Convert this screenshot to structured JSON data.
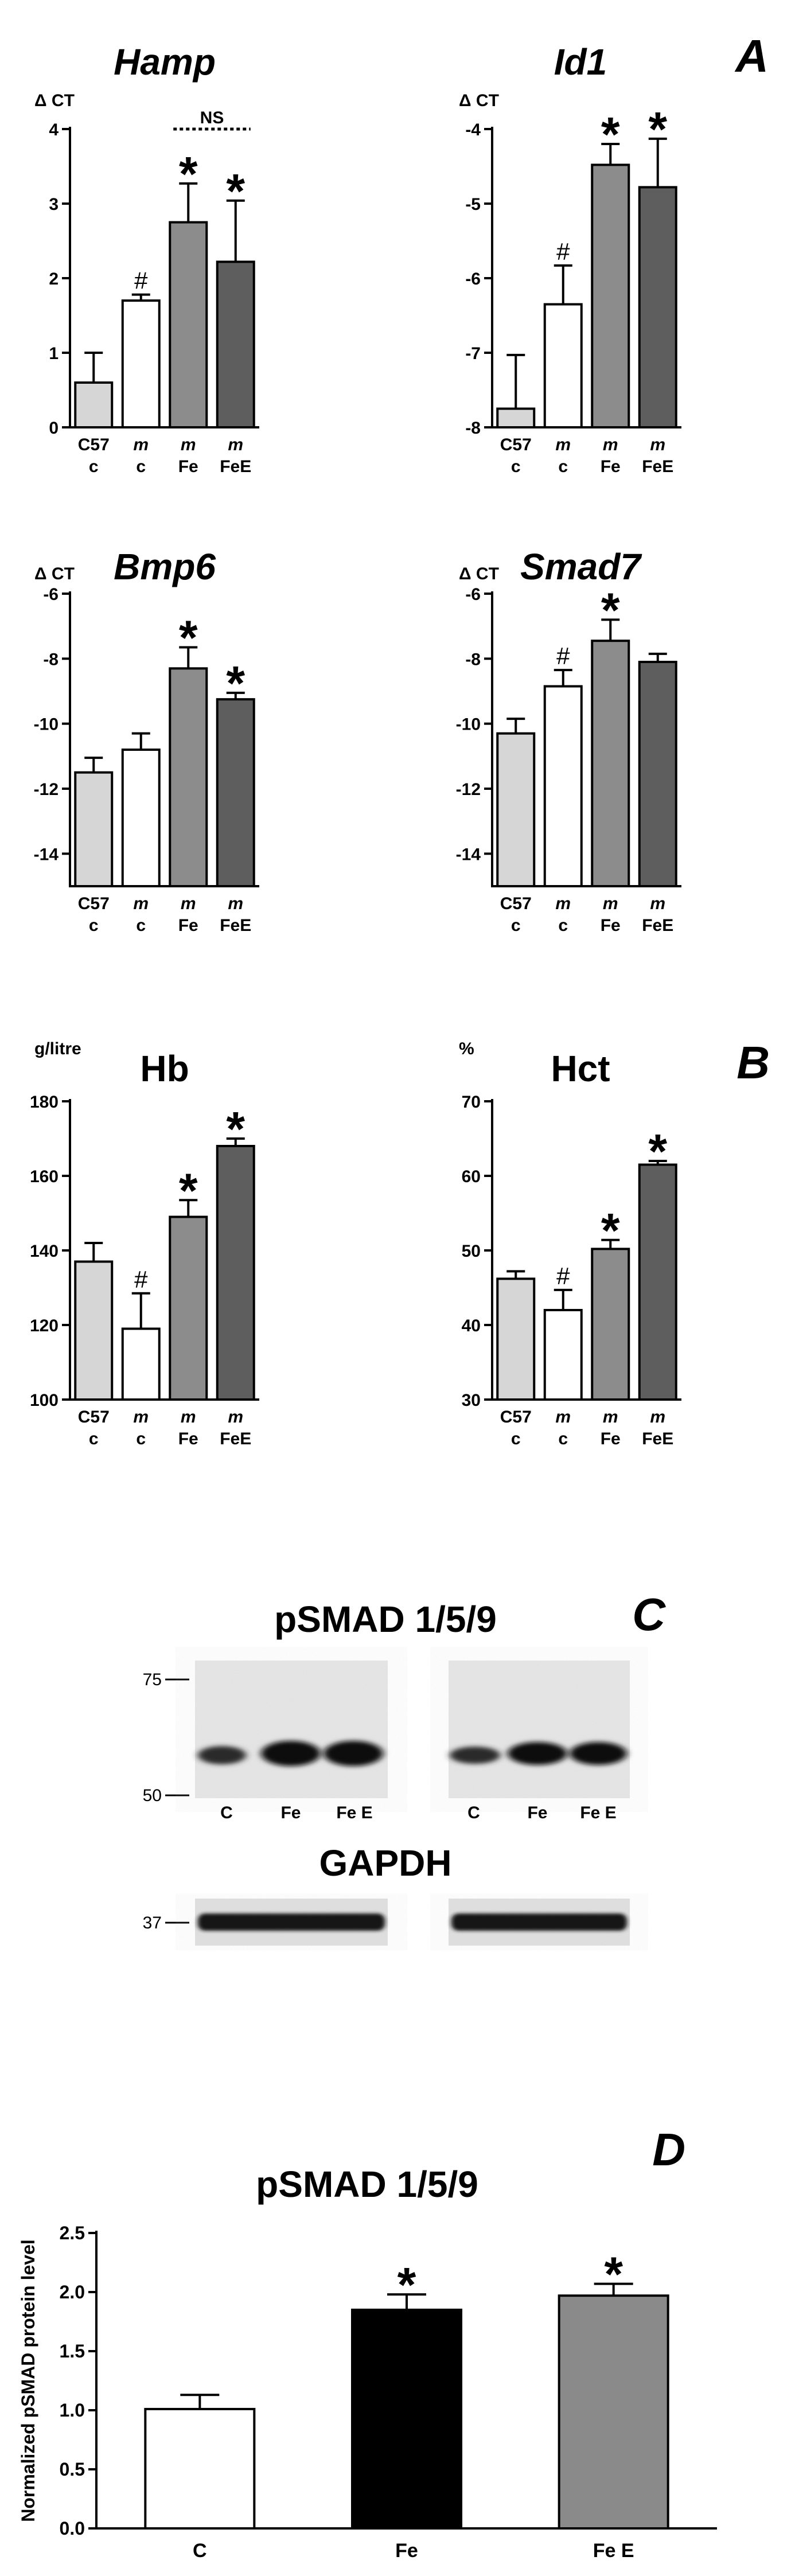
{
  "panel_letters": {
    "A": "A",
    "B": "B",
    "C": "C",
    "D": "D"
  },
  "colors": {
    "control": "#d6d6d6",
    "mutant_c": "#ffffff",
    "mutant_fe": "#8c8c8c",
    "mutant_fee": "#5e5e5e",
    "black": "#000000",
    "grey": "#8a8a8a"
  },
  "chart_data": [
    {
      "type": "bar",
      "title": "Hamp",
      "ylabel": "Δ CT",
      "ylim": [
        0,
        4
      ],
      "yticks": [
        0,
        1,
        2,
        3,
        4
      ],
      "categories": [
        [
          "C57",
          "c"
        ],
        [
          "m",
          "c"
        ],
        [
          "m",
          "Fe"
        ],
        [
          "m",
          "FeE"
        ]
      ],
      "values": [
        0.6,
        1.7,
        2.75,
        2.22
      ],
      "errors": [
        0.4,
        0.08,
        0.52,
        0.82
      ],
      "annotations": [
        "",
        "#",
        "*",
        "*"
      ],
      "bracket_label": "NS"
    },
    {
      "type": "bar",
      "title": "Id1",
      "ylabel": "Δ CT",
      "ylim": [
        -8,
        -4
      ],
      "yticks": [
        -8,
        -7,
        -6,
        -5,
        -4
      ],
      "categories": [
        [
          "C57",
          "c"
        ],
        [
          "m",
          "c"
        ],
        [
          "m",
          "Fe"
        ],
        [
          "m",
          "FeE"
        ]
      ],
      "values": [
        -7.75,
        -6.35,
        -4.48,
        -4.78
      ],
      "errors": [
        0.72,
        0.52,
        0.28,
        0.65
      ],
      "annotations": [
        "",
        "#",
        "*",
        "*"
      ]
    },
    {
      "type": "bar",
      "title": "Bmp6",
      "ylabel": "Δ CT",
      "ylim": [
        -15,
        -6
      ],
      "yticks": [
        -14,
        -12,
        -10,
        -8,
        -6
      ],
      "categories": [
        [
          "C57",
          "c"
        ],
        [
          "m",
          "c"
        ],
        [
          "m",
          "Fe"
        ],
        [
          "m",
          "FeE"
        ]
      ],
      "values": [
        -11.5,
        -10.8,
        -8.3,
        -9.25
      ],
      "errors": [
        0.45,
        0.5,
        0.65,
        0.2
      ],
      "annotations": [
        "",
        "",
        "*",
        "*"
      ]
    },
    {
      "type": "bar",
      "title": "Smad7",
      "ylabel": "Δ CT",
      "ylim": [
        -15,
        -6
      ],
      "yticks": [
        -14,
        -12,
        -10,
        -8,
        -6
      ],
      "categories": [
        [
          "C57",
          "c"
        ],
        [
          "m",
          "c"
        ],
        [
          "m",
          "Fe"
        ],
        [
          "m",
          "FeE"
        ]
      ],
      "values": [
        -10.3,
        -8.85,
        -7.45,
        -8.1
      ],
      "errors": [
        0.45,
        0.5,
        0.65,
        0.25
      ],
      "annotations": [
        "",
        "#",
        "*",
        ""
      ]
    },
    {
      "type": "bar",
      "title": "Hb",
      "ylabel": "g/litre",
      "ylim": [
        100,
        180
      ],
      "yticks": [
        100,
        120,
        140,
        160,
        180
      ],
      "categories": [
        [
          "C57",
          "c"
        ],
        [
          "m",
          "c"
        ],
        [
          "m",
          "Fe"
        ],
        [
          "m",
          "FeE"
        ]
      ],
      "values": [
        137,
        119,
        149,
        168
      ],
      "errors": [
        5,
        9.5,
        4.5,
        2
      ],
      "annotations": [
        "",
        "#",
        "*",
        "*"
      ]
    },
    {
      "type": "bar",
      "title": "Hct",
      "ylabel": "%",
      "ylim": [
        30,
        70
      ],
      "yticks": [
        30,
        40,
        50,
        60,
        70
      ],
      "categories": [
        [
          "C57",
          "c"
        ],
        [
          "m",
          "c"
        ],
        [
          "m",
          "Fe"
        ],
        [
          "m",
          "FeE"
        ]
      ],
      "values": [
        46.2,
        42,
        50.2,
        61.5
      ],
      "errors": [
        1,
        2.7,
        1.2,
        0.5
      ],
      "annotations": [
        "",
        "#",
        "*",
        "*"
      ]
    },
    {
      "type": "bar",
      "title": "pSMAD 1/5/9",
      "ylabel": "Normalized pSMAD protein level",
      "ylim": [
        0,
        2.5
      ],
      "yticks": [
        "0.0",
        "0.5",
        "1.0",
        "1.5",
        "2.0",
        "2.5"
      ],
      "categories": [
        "C",
        "Fe",
        "Fe E"
      ],
      "values": [
        1.01,
        1.85,
        1.97
      ],
      "errors": [
        0.12,
        0.13,
        0.1
      ],
      "annotations": [
        "",
        "*",
        "*"
      ]
    }
  ],
  "blot": {
    "title": "pSMAD 1/5/9",
    "markers": [
      "75",
      "50"
    ],
    "lane_labels": [
      "C",
      "Fe",
      "Fe E"
    ],
    "loading_title": "GAPDH",
    "loading_marker": "37"
  }
}
